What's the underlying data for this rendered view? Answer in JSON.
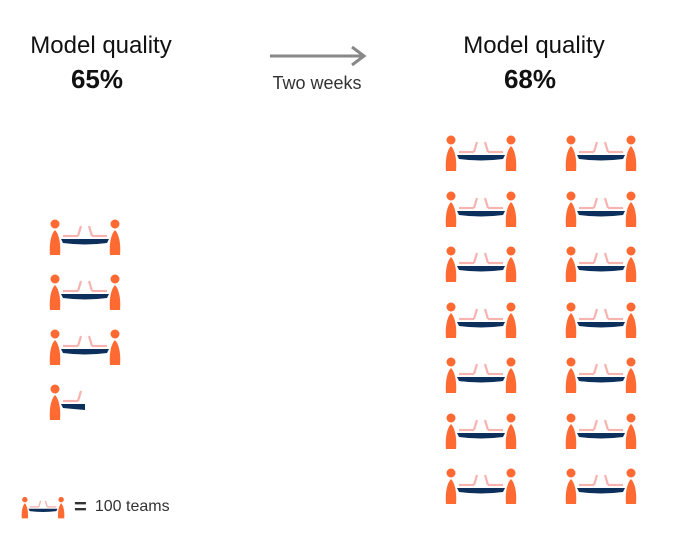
{
  "before": {
    "title": "Model quality",
    "percent": "65%",
    "icon_count": 3.5
  },
  "transition": {
    "label": "Two weeks",
    "icon": "arrow-right-icon"
  },
  "after": {
    "title": "Model quality",
    "percent": "68%",
    "icon_count": 14
  },
  "legend": {
    "equals": "=",
    "label": "100 teams",
    "icon": "team-at-table-icon"
  },
  "colors": {
    "person": "#ff6a33",
    "table": "#0d2f5c",
    "chair": "#f7b3b0",
    "arrow": "#888888"
  }
}
